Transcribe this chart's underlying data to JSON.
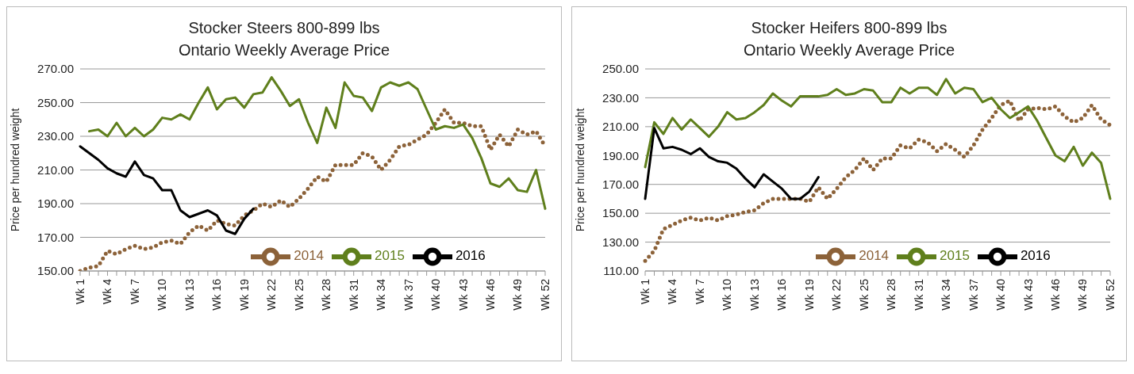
{
  "chart_data": [
    {
      "type": "line",
      "title": "Stocker Steers 800-899 lbs",
      "subtitle": "Ontario Weekly Average Price",
      "ylabel": "Price per hundred weight",
      "categories": [
        "Wk 1",
        null,
        null,
        "Wk 4",
        null,
        null,
        "Wk 7",
        null,
        null,
        "Wk 10",
        null,
        null,
        "Wk 13",
        null,
        null,
        "Wk 16",
        null,
        null,
        "Wk 19",
        null,
        null,
        "Wk 22",
        null,
        null,
        "Wk 25",
        null,
        null,
        "Wk 28",
        null,
        null,
        "Wk 31",
        null,
        null,
        "Wk 34",
        null,
        null,
        "Wk 37",
        null,
        null,
        "Wk 40",
        null,
        null,
        "Wk 43",
        null,
        null,
        "Wk 46",
        null,
        null,
        "Wk 49",
        null,
        null,
        "Wk 52"
      ],
      "ylim": [
        150,
        270
      ],
      "yticks": [
        {
          "value": 150,
          "label": "150.00"
        },
        {
          "value": 170,
          "label": "170.00"
        },
        {
          "value": 190,
          "label": "190.00"
        },
        {
          "value": 210,
          "label": "210.00"
        },
        {
          "value": 230,
          "label": "230.00"
        },
        {
          "value": 250,
          "label": "250.00"
        },
        {
          "value": 270,
          "label": "270.00"
        }
      ],
      "grid": "y",
      "legend": "bottom",
      "series": [
        {
          "name": "2014",
          "color": "#8c6239",
          "line_style": "dotted",
          "values": [
            150,
            152,
            153,
            162,
            160,
            163,
            165,
            163,
            164,
            167,
            168,
            166,
            173,
            177,
            174,
            180,
            178,
            177,
            183,
            186,
            190,
            188,
            192,
            188,
            193,
            199,
            206,
            203,
            213,
            213,
            213,
            220,
            218,
            210,
            216,
            224,
            225,
            228,
            231,
            238,
            246,
            238,
            238,
            236,
            236,
            222,
            231,
            224,
            234,
            231,
            233,
            224
          ]
        },
        {
          "name": "2015",
          "color": "#5f7f1c",
          "line_style": "solid",
          "values": [
            null,
            233,
            234,
            230,
            238,
            230,
            235,
            230,
            234,
            241,
            240,
            243,
            240,
            250,
            259,
            246,
            252,
            253,
            247,
            255,
            256,
            265,
            257,
            248,
            252,
            238,
            226,
            247,
            235,
            262,
            254,
            253,
            245,
            259,
            262,
            260,
            262,
            258,
            246,
            234,
            236,
            235,
            237,
            229,
            217,
            202,
            200,
            205,
            198,
            197,
            210,
            187
          ]
        },
        {
          "name": "2016",
          "color": "#000000",
          "line_style": "solid",
          "values": [
            224,
            220,
            216,
            211,
            208,
            206,
            215,
            207,
            205,
            198,
            198,
            186,
            182,
            184,
            186,
            183,
            174,
            172,
            181,
            187,
            null,
            null,
            null,
            null,
            null,
            null,
            null,
            null,
            null,
            null,
            null,
            null,
            null,
            null,
            null,
            null,
            null,
            null,
            null,
            null,
            null,
            null,
            null,
            null,
            null,
            null,
            null,
            null,
            null,
            null,
            null,
            null
          ]
        }
      ]
    },
    {
      "type": "line",
      "title": "Stocker Heifers 800-899 lbs",
      "subtitle": "Ontario Weekly Average Price",
      "ylabel": "Price per hundred weight",
      "categories": [
        "Wk 1",
        null,
        null,
        "Wk 4",
        null,
        null,
        "Wk 7",
        null,
        null,
        "Wk 10",
        null,
        null,
        "Wk 13",
        null,
        null,
        "Wk 16",
        null,
        null,
        "Wk 19",
        null,
        null,
        "Wk 22",
        null,
        null,
        "Wk 25",
        null,
        null,
        "Wk 28",
        null,
        null,
        "Wk 31",
        null,
        null,
        "Wk 34",
        null,
        null,
        "Wk 37",
        null,
        null,
        "Wk 40",
        null,
        null,
        "Wk 43",
        null,
        null,
        "Wk 46",
        null,
        null,
        "Wk 49",
        null,
        null,
        "Wk 52"
      ],
      "ylim": [
        110,
        250
      ],
      "yticks": [
        {
          "value": 110,
          "label": "110.00"
        },
        {
          "value": 130,
          "label": "130.00"
        },
        {
          "value": 150,
          "label": "150.00"
        },
        {
          "value": 170,
          "label": "170.00"
        },
        {
          "value": 190,
          "label": "190.00"
        },
        {
          "value": 210,
          "label": "210.00"
        },
        {
          "value": 230,
          "label": "230.00"
        },
        {
          "value": 250,
          "label": "250.00"
        }
      ],
      "grid": "y",
      "legend": "bottom",
      "series": [
        {
          "name": "2014",
          "color": "#8c6239",
          "line_style": "dotted",
          "values": [
            117,
            124,
            139,
            142,
            145,
            147,
            145,
            147,
            145,
            148,
            149,
            151,
            152,
            157,
            160,
            160,
            160,
            160,
            158,
            168,
            160,
            167,
            175,
            180,
            188,
            180,
            188,
            188,
            197,
            195,
            201,
            199,
            193,
            198,
            194,
            189,
            197,
            208,
            216,
            225,
            228,
            214,
            222,
            223,
            222,
            224,
            217,
            213,
            216,
            225,
            215,
            211
          ]
        },
        {
          "name": "2015",
          "color": "#5f7f1c",
          "line_style": "solid",
          "values": [
            182,
            213,
            205,
            216,
            208,
            215,
            209,
            203,
            210,
            220,
            215,
            216,
            220,
            225,
            233,
            228,
            224,
            231,
            231,
            231,
            232,
            236,
            232,
            233,
            236,
            235,
            227,
            227,
            237,
            233,
            237,
            237,
            232,
            243,
            233,
            237,
            236,
            227,
            230,
            222,
            216,
            220,
            224,
            214,
            202,
            190,
            186,
            196,
            183,
            192,
            185,
            160
          ]
        },
        {
          "name": "2016",
          "color": "#000000",
          "line_style": "solid",
          "values": [
            160,
            209,
            195,
            196,
            194,
            191,
            195,
            189,
            186,
            185,
            181,
            174,
            168,
            177,
            172,
            167,
            160,
            160,
            165,
            175,
            null,
            null,
            null,
            null,
            null,
            null,
            null,
            null,
            null,
            null,
            null,
            null,
            null,
            null,
            null,
            null,
            null,
            null,
            null,
            null,
            null,
            null,
            null,
            null,
            null,
            null,
            null,
            null,
            null,
            null,
            null,
            null
          ]
        }
      ]
    }
  ]
}
